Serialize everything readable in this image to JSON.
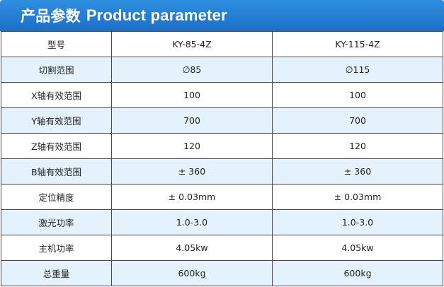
{
  "header": {
    "title_cn": "产品参数",
    "title_en": "Product parameter"
  },
  "table": {
    "rows": [
      {
        "label": "型号",
        "v1": "KY-85-4Z",
        "v2": "KY-115-4Z"
      },
      {
        "label": "切割范围",
        "v1": "∅85",
        "v2": "∅115"
      },
      {
        "label": "X轴有效范围",
        "v1": "100",
        "v2": "100"
      },
      {
        "label": "Y轴有效范围",
        "v1": "700",
        "v2": "700"
      },
      {
        "label": "Z轴有效范围",
        "v1": "120",
        "v2": "120"
      },
      {
        "label": "B轴有效范围",
        "v1": "± 360",
        "v2": "± 360"
      },
      {
        "label": "定位精度",
        "v1": "± 0.03mm",
        "v2": "± 0.03mm"
      },
      {
        "label": "激光功率",
        "v1": "1.0-3.0",
        "v2": "1.0-3.0"
      },
      {
        "label": "主机功率",
        "v1": "4.05kw",
        "v2": "4.05kw"
      },
      {
        "label": "总重量",
        "v1": "600kg",
        "v2": "600kg"
      }
    ]
  },
  "colors": {
    "header_bg": "#1f78d1",
    "row_alt_bg": "#e3f2fc",
    "border": "#4a4a4a"
  }
}
